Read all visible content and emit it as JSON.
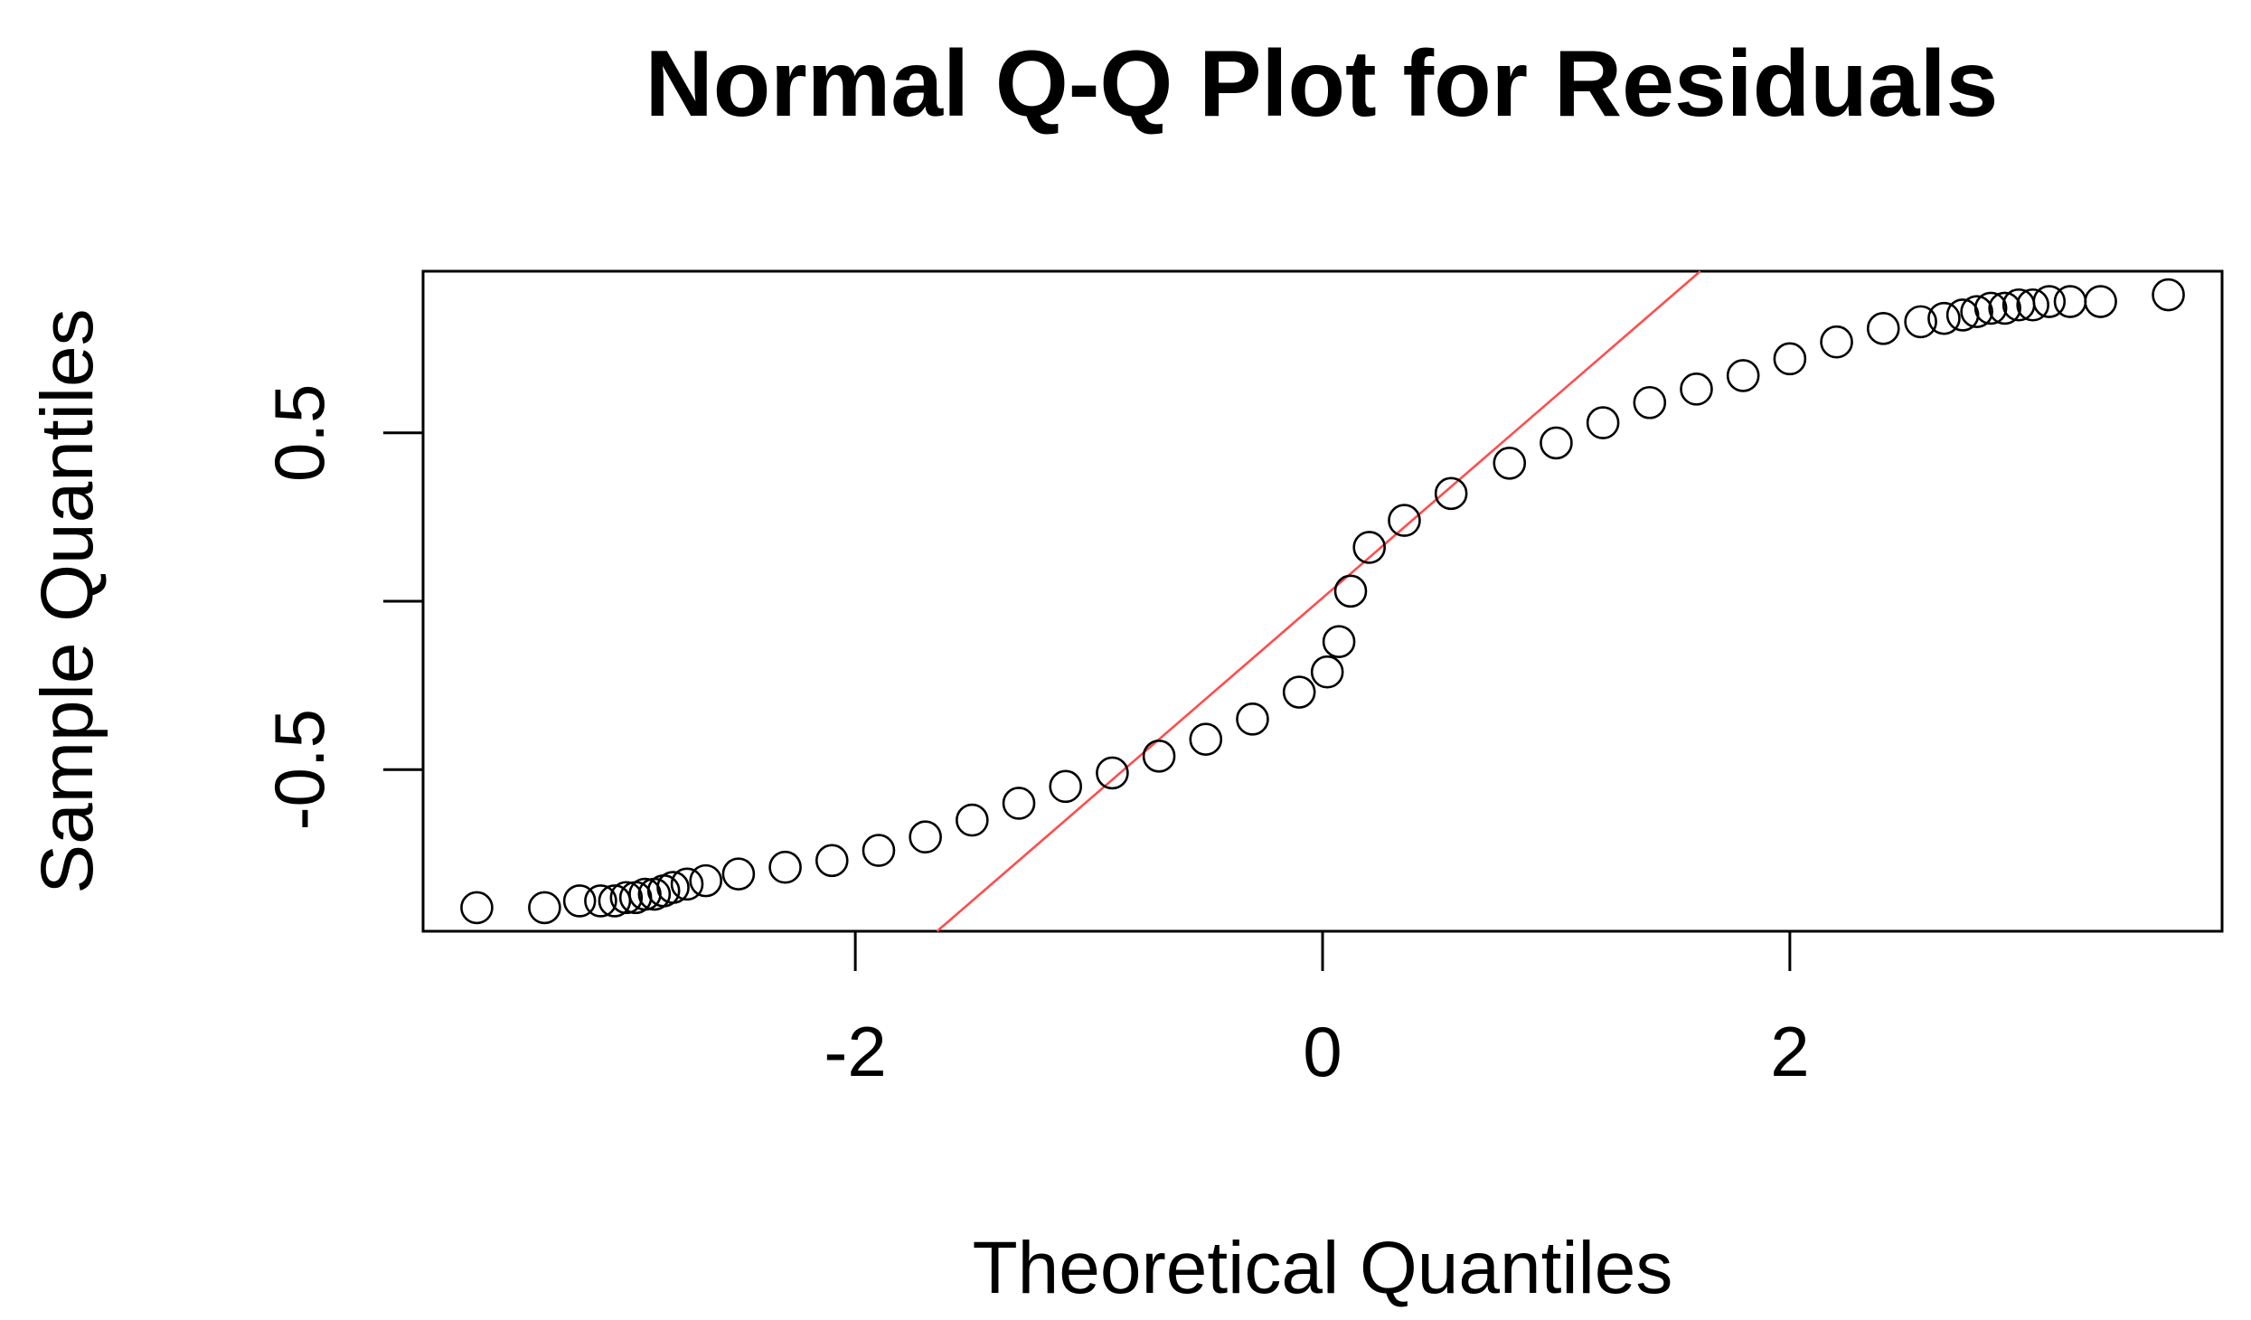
{
  "chart_data": {
    "type": "scatter",
    "title": "Normal Q-Q Plot for Residuals",
    "xlabel": "Theoretical Quantiles",
    "ylabel": "Sample Quantiles",
    "xlim": [
      -3.85,
      3.85
    ],
    "ylim": [
      -0.98,
      0.98
    ],
    "x_ticks": [
      -2,
      0,
      2
    ],
    "x_tick_labels": [
      "-2",
      "0",
      "2"
    ],
    "y_ticks": [
      -0.5,
      0,
      0.5
    ],
    "y_tick_labels": [
      "-0.5",
      "",
      "0.5"
    ],
    "grid": false,
    "legend": "none",
    "point_color": "#000000",
    "series": [
      {
        "values_x": [
          -3.62,
          -3.33,
          -3.18,
          -3.09,
          -3.03,
          -2.98,
          -2.94,
          -2.9,
          -2.86,
          -2.82,
          -2.78,
          -2.72,
          -2.64,
          -2.5,
          -2.3,
          -2.1,
          -1.9,
          -1.7,
          -1.5,
          -1.3,
          -1.1,
          -0.9,
          -0.7,
          -0.5,
          -0.3,
          -0.1,
          0.02,
          0.07,
          0.12,
          0.2,
          0.35,
          0.55,
          0.8,
          1.0,
          1.2,
          1.4,
          1.6,
          1.8,
          2.0,
          2.2,
          2.4,
          2.56,
          2.66,
          2.74,
          2.8,
          2.86,
          2.92,
          2.98,
          3.04,
          3.11,
          3.2,
          3.33,
          3.62
        ],
        "values_y": [
          -0.91,
          -0.91,
          -0.89,
          -0.89,
          -0.89,
          -0.88,
          -0.88,
          -0.87,
          -0.87,
          -0.86,
          -0.85,
          -0.84,
          -0.83,
          -0.81,
          -0.79,
          -0.77,
          -0.74,
          -0.7,
          -0.65,
          -0.6,
          -0.55,
          -0.51,
          -0.46,
          -0.41,
          -0.35,
          -0.27,
          -0.21,
          -0.12,
          0.03,
          0.16,
          0.24,
          0.32,
          0.41,
          0.47,
          0.53,
          0.59,
          0.63,
          0.67,
          0.72,
          0.77,
          0.81,
          0.83,
          0.84,
          0.85,
          0.86,
          0.87,
          0.87,
          0.88,
          0.88,
          0.89,
          0.89,
          0.89,
          0.91
        ]
      }
    ],
    "reference_line": {
      "color": "#ff4d4d",
      "intercept": 0.01,
      "slope": 0.6
    }
  }
}
